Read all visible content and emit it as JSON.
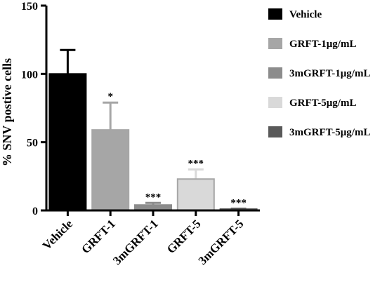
{
  "chart_data": {
    "type": "bar",
    "categories": [
      "Vehicle",
      "GRFT-1",
      "3mGRFT-1",
      "GRFT-5",
      "3mGRFT-5"
    ],
    "values": [
      100,
      59,
      4,
      23,
      1
    ],
    "errors": [
      17.5,
      20,
      1.5,
      7,
      0.3
    ],
    "significance": [
      "",
      "*",
      "***",
      "***",
      "***"
    ],
    "ylabel": "% SNV postive cells",
    "ylim": [
      0,
      150
    ],
    "yticks": [
      0,
      50,
      100,
      150
    ],
    "grid": false,
    "legend_position": "right",
    "series": [
      {
        "name": "Vehicle",
        "color": "#000000"
      },
      {
        "name": "GRFT-1μg/mL",
        "color": "#a6a6a6"
      },
      {
        "name": "3mGRFT-1μg/mL",
        "color": "#8c8c8c"
      },
      {
        "name": "GRFT-5μg/mL",
        "color": "#d9d9d9"
      },
      {
        "name": "3mGRFT-5μg/mL",
        "color": "#595959"
      }
    ]
  }
}
